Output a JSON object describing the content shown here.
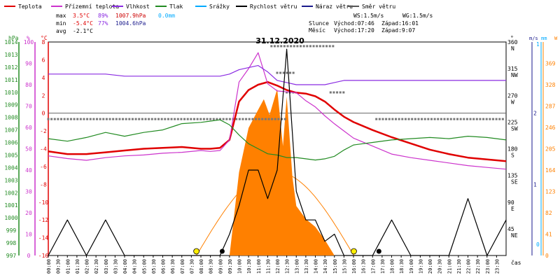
{
  "chart_data": {
    "type": "line",
    "title": "31.12.2020",
    "legend": [
      {
        "label": "Teplota",
        "color": "#e00000"
      },
      {
        "label": "Přízemní teplota",
        "color": "#cc33cc"
      },
      {
        "label": "Vlhkost",
        "color": "#8a2be2"
      },
      {
        "label": "Tlak",
        "color": "#228b22"
      },
      {
        "label": "Srážky",
        "color": "#00aaff"
      },
      {
        "label": "Rychlost větru",
        "color": "#000000"
      },
      {
        "label": "Náraz větru",
        "color": "#1a1a8c"
      },
      {
        "label": "Směr větru",
        "color": "#555555"
      }
    ],
    "stats": {
      "max": {
        "label": "max",
        "temp": "3.5°C",
        "hum": "89%",
        "press": "1007.9hPa",
        "rain": "0.0mm"
      },
      "min": {
        "label": "min",
        "temp": "-5.4°C",
        "hum": "77%",
        "press": "1004.6hPa"
      },
      "avg": {
        "label": "avg",
        "temp": "-2.1°C"
      }
    },
    "wind_stats": {
      "ws": "WS:1.5m/s",
      "wg": "WG:1.5m/s"
    },
    "sun": {
      "label": "Slunce",
      "rise": "Východ:07:46",
      "set": "Západ:16:01"
    },
    "moon": {
      "label": "Měsíc",
      "rise": "Východ:17:20",
      "set": "Západ:9:07"
    },
    "axes": {
      "hpa": {
        "unit": "hPa",
        "ticks": [
          "1014",
          "1013",
          "1012",
          "1011",
          "1010",
          "1009",
          "1008",
          "1007",
          "1006",
          "1005",
          "1004",
          "1003",
          "1002",
          "1001",
          "1000",
          "999",
          "998",
          "997"
        ],
        "range": [
          997,
          1014
        ]
      },
      "percent": {
        "unit": "%",
        "ticks": [
          "100",
          "90",
          "80",
          "70",
          "60",
          "50",
          "40",
          "30",
          "20",
          "10",
          "0"
        ],
        "range": [
          0,
          100
        ]
      },
      "celsius": {
        "unit": "°C",
        "ticks": [
          "8",
          "6",
          "4",
          "2",
          "0",
          "-2",
          "-4",
          "-6",
          "-8",
          "-10",
          "-12",
          "-14",
          "-16"
        ],
        "range": [
          -16,
          8
        ]
      },
      "direction": {
        "unit": "°",
        "ticks": [
          {
            "deg": "360",
            "dir": "N"
          },
          {
            "deg": "315",
            "dir": "NW"
          },
          {
            "deg": "270",
            "dir": "W"
          },
          {
            "deg": "225",
            "dir": "SW"
          },
          {
            "deg": "180",
            "dir": "S"
          },
          {
            "deg": "135",
            "dir": "SE"
          },
          {
            "deg": "90",
            "dir": "E"
          },
          {
            "deg": "45",
            "dir": "NE"
          }
        ],
        "range": [
          0,
          360
        ]
      },
      "ms": {
        "unit": "m/s",
        "ticks": [
          "1",
          "2"
        ],
        "range": [
          0,
          3
        ]
      },
      "mm": {
        "unit": "mm",
        "ticks": [
          "1",
          "0"
        ]
      },
      "wm2": {
        "unit": "W",
        "ticks": [
          "369",
          "328",
          "287",
          "246",
          "205",
          "164",
          "123",
          "82",
          "41",
          "0"
        ],
        "range": [
          0,
          410
        ]
      },
      "time": {
        "label": "čas",
        "ticks": [
          "00:00",
          "00:30",
          "01:00",
          "01:30",
          "02:00",
          "02:30",
          "03:00",
          "03:30",
          "04:00",
          "04:30",
          "05:00",
          "05:30",
          "06:00",
          "06:30",
          "07:00",
          "07:30",
          "08:00",
          "08:30",
          "09:00",
          "09:30",
          "10:00",
          "10:30",
          "11:00",
          "11:30",
          "12:00",
          "12:30",
          "13:00",
          "13:30",
          "14:00",
          "14:30",
          "15:00",
          "15:30",
          "16:00",
          "16:30",
          "17:00",
          "17:30",
          "18:00",
          "18:30",
          "19:00",
          "19:30",
          "20:00",
          "20:30",
          "21:00",
          "21:30",
          "22:00",
          "22:30",
          "23:00",
          "23:30"
        ]
      }
    },
    "x_hours": [
      0,
      1,
      2,
      3,
      4,
      5,
      6,
      7,
      8,
      8.5,
      9,
      9.5,
      10,
      10.5,
      11,
      11.5,
      12,
      12.5,
      13,
      13.5,
      14,
      14.5,
      15,
      15.5,
      16,
      17,
      18,
      19,
      20,
      21,
      22,
      23,
      24
    ],
    "series": [
      {
        "name": "Teplota",
        "color": "#e00000",
        "axis": "celsius",
        "values": [
          -4.3,
          -4.6,
          -4.6,
          -4.4,
          -4.2,
          -4.0,
          -3.9,
          -3.8,
          -4.0,
          -4.0,
          -3.9,
          -3.0,
          1.3,
          2.6,
          3.2,
          3.5,
          3.1,
          2.6,
          2.3,
          2.2,
          1.9,
          1.3,
          0.4,
          -0.4,
          -1.0,
          -1.9,
          -2.7,
          -3.4,
          -4.1,
          -4.6,
          -5.0,
          -5.2,
          -5.4
        ]
      },
      {
        "name": "Přízemní teplota",
        "color": "#cc33cc",
        "axis": "celsius",
        "values": [
          -4.8,
          -5.1,
          -5.3,
          -5.0,
          -4.8,
          -4.7,
          -4.5,
          -4.4,
          -4.2,
          -4.3,
          -4.2,
          -3.0,
          3.5,
          5.0,
          6.8,
          3.3,
          2.5,
          2.4,
          2.3,
          1.4,
          0.7,
          -0.3,
          -1.2,
          -2.0,
          -2.8,
          -3.7,
          -4.6,
          -5.0,
          -5.3,
          -5.6,
          -5.9,
          -6.1,
          -6.3
        ]
      },
      {
        "name": "Vlhkost",
        "color": "#8a2be2",
        "axis": "percent",
        "values": [
          85,
          85,
          85,
          85,
          84,
          84,
          84,
          84,
          84,
          84,
          84,
          85,
          87,
          88,
          89,
          86,
          82,
          81,
          80,
          80,
          80,
          80,
          81,
          82,
          82,
          82,
          82,
          82,
          82,
          82,
          82,
          82,
          82
        ]
      },
      {
        "name": "Tlak",
        "color": "#228b22",
        "axis": "hpa",
        "values": [
          1006.3,
          1006.1,
          1006.4,
          1006.8,
          1006.5,
          1006.8,
          1007.0,
          1007.5,
          1007.6,
          1007.7,
          1007.8,
          1007.4,
          1006.6,
          1005.9,
          1005.5,
          1005.1,
          1005.0,
          1004.8,
          1004.8,
          1004.7,
          1004.6,
          1004.7,
          1004.9,
          1005.4,
          1005.8,
          1006.0,
          1006.2,
          1006.3,
          1006.4,
          1006.3,
          1006.5,
          1006.4,
          1006.2
        ]
      },
      {
        "name": "Rychlost větru",
        "color": "#000000",
        "axis": "ms",
        "values": [
          0,
          0.5,
          0,
          0.5,
          0,
          0,
          0,
          0,
          0,
          0,
          0,
          0.3,
          0.7,
          1.2,
          1.2,
          0.8,
          1.2,
          2.9,
          0.9,
          0.5,
          0.5,
          0.2,
          0.3,
          0,
          0,
          0,
          0.5,
          0,
          0,
          0,
          0.8,
          0,
          0.5
        ]
      }
    ],
    "solar": {
      "name": "Sluneční záření",
      "color": "#ff8000",
      "axis": "wm2",
      "x_hours": [
        9.5,
        10,
        10.5,
        11,
        11.3,
        11.6,
        12,
        12.3,
        12.5,
        12.8,
        13,
        13.5,
        14,
        14.5,
        15
      ],
      "values": [
        0,
        160,
        245,
        280,
        300,
        270,
        320,
        210,
        305,
        150,
        95,
        70,
        55,
        30,
        0
      ]
    },
    "wind_direction": {
      "name": "Směr větru",
      "axis": "direction",
      "points": [
        {
          "x_range": [
            0,
            12.5
          ],
          "deg": 230
        },
        {
          "x_range": [
            11.7,
            15
          ],
          "deg": 353
        },
        {
          "x_range": [
            12.0,
            13.0
          ],
          "deg": 308
        },
        {
          "x_range": [
            12.5,
            13.0
          ],
          "deg": 275
        },
        {
          "x_range": [
            14.8,
            15.5
          ],
          "deg": 275
        },
        {
          "x_range": [
            17.2,
            24
          ],
          "deg": 230
        }
      ]
    }
  }
}
